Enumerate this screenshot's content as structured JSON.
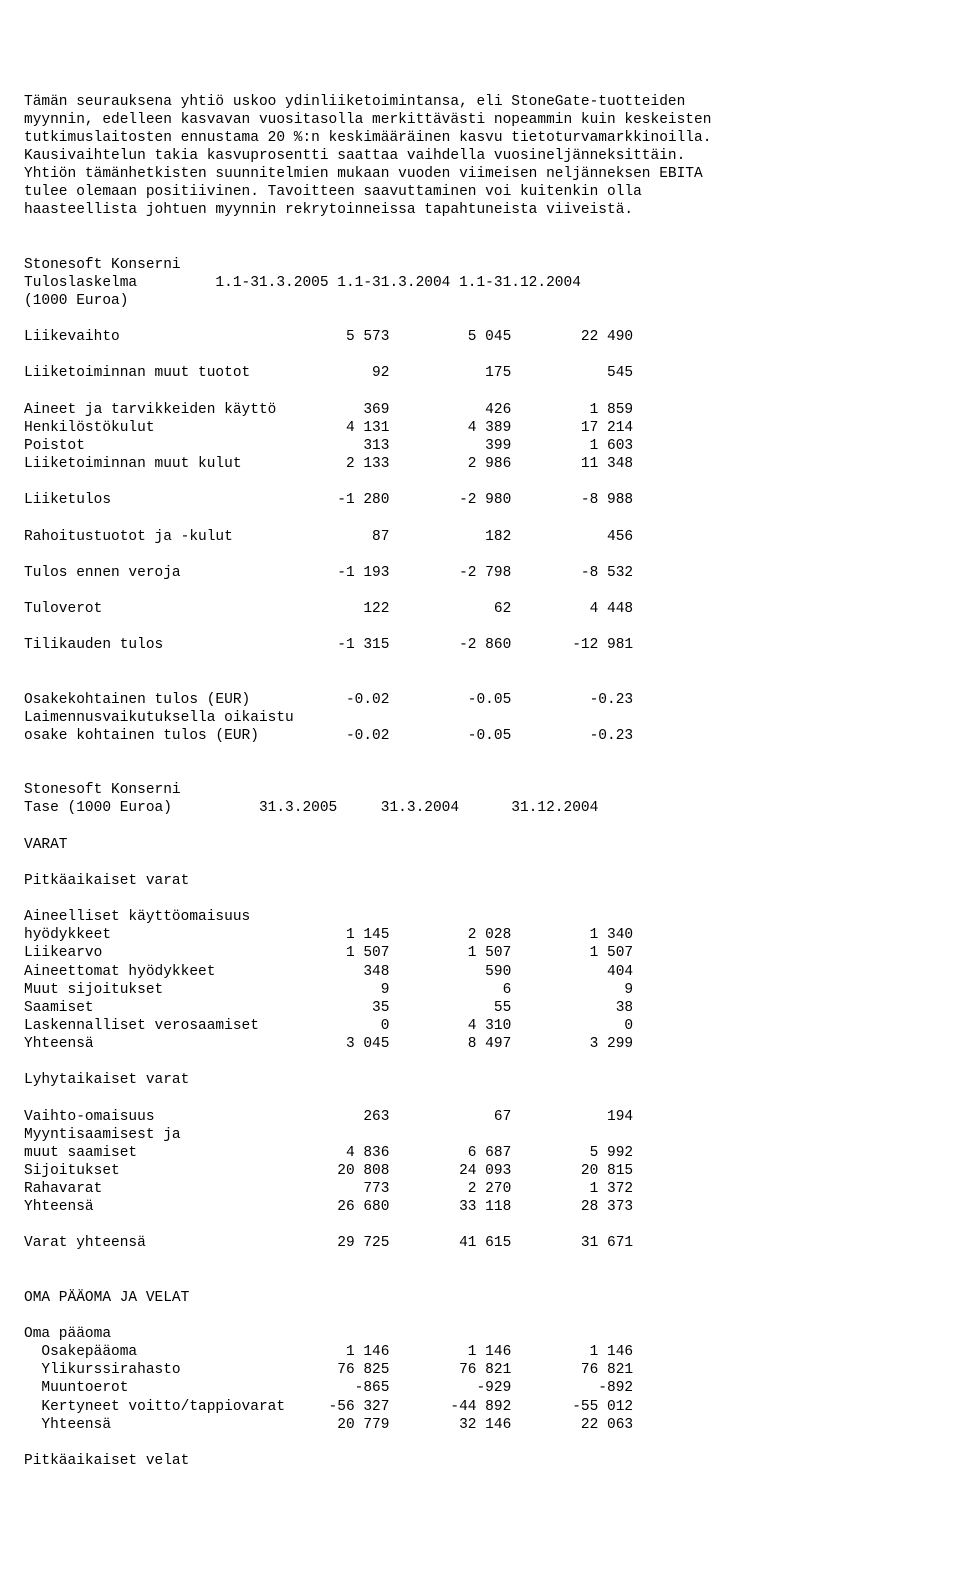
{
  "para1": "Tämän seurauksena yhtiö uskoo ydinliiketoimintansa, eli StoneGate-tuotteiden\nmyynnin, edelleen kasvavan vuositasolla merkittävästi nopeammin kuin keskeisten\ntutkimuslaitosten ennustama 20 %:n keskimääräinen kasvu tietoturvamarkkinoilla.\nKausivaihtelun takia kasvuprosentti saattaa vaihdella vuosineljänneksittäin.\nYhtiön tämänhetkisten suunnitelmien mukaan vuoden viimeisen neljänneksen EBITA\ntulee olemaan positiivinen. Tavoitteen saavuttaminen voi kuitenkin olla\nhaasteellista johtuen myynnin rekrytoinneissa tapahtuneista viiveistä.",
  "income": {
    "title": "Stonesoft Konserni",
    "labelL": "Tuloslaskelma",
    "note": "(1000 Euroa)",
    "col1": "1.1-31.3.2005",
    "col2": "1.1-31.3.2004",
    "col3": "1.1-31.12.2004",
    "r1": {
      "l": "Liikevaihto",
      "a": "5 573",
      "b": "5 045",
      "c": "22 490"
    },
    "r2": {
      "l": "Liiketoiminnan muut tuotot",
      "a": "92",
      "b": "175",
      "c": "545"
    },
    "r3": {
      "l": "Aineet ja tarvikkeiden käyttö",
      "a": "369",
      "b": "426",
      "c": "1 859"
    },
    "r4": {
      "l": "Henkilöstökulut",
      "a": "4 131",
      "b": "4 389",
      "c": "17 214"
    },
    "r5": {
      "l": "Poistot",
      "a": "313",
      "b": "399",
      "c": "1 603"
    },
    "r6": {
      "l": "Liiketoiminnan muut kulut",
      "a": "2 133",
      "b": "2 986",
      "c": "11 348"
    },
    "r7": {
      "l": "Liiketulos",
      "a": "-1 280",
      "b": "-2 980",
      "c": "-8 988"
    },
    "r8": {
      "l": "Rahoitustuotot ja -kulut",
      "a": "87",
      "b": "182",
      "c": "456"
    },
    "r9": {
      "l": "Tulos ennen veroja",
      "a": "-1 193",
      "b": "-2 798",
      "c": "-8 532"
    },
    "r10": {
      "l": "Tuloverot",
      "a": "122",
      "b": "62",
      "c": "4 448"
    },
    "r11": {
      "l": "Tilikauden tulos",
      "a": "-1 315",
      "b": "-2 860",
      "c": "-12 981"
    },
    "r12": {
      "l": "Osakekohtainen tulos (EUR)",
      "a": "-0.02",
      "b": "-0.05",
      "c": "-0.23"
    },
    "r13l": "Laimennusvaikutuksella oikaistu",
    "r13": {
      "l": "osake kohtainen tulos (EUR)",
      "a": "-0.02",
      "b": "-0.05",
      "c": "-0.23"
    }
  },
  "balance": {
    "title": "Stonesoft Konserni",
    "labelL": "Tase (1000 Euroa)",
    "col1": "31.3.2005",
    "col2": "31.3.2004",
    "col3": "31.12.2004",
    "h1": "VARAT",
    "h2": "Pitkäaikaiset varat",
    "h2b": "Aineelliset käyttöomaisuus",
    "r1": {
      "l": "hyödykkeet",
      "a": "1 145",
      "b": "2 028",
      "c": "1 340"
    },
    "r2": {
      "l": "Liikearvo",
      "a": "1 507",
      "b": "1 507",
      "c": "1 507"
    },
    "r3": {
      "l": "Aineettomat hyödykkeet",
      "a": "348",
      "b": "590",
      "c": "404"
    },
    "r4": {
      "l": "Muut sijoitukset",
      "a": "9",
      "b": "6",
      "c": "9"
    },
    "r5": {
      "l": "Saamiset",
      "a": "35",
      "b": "55",
      "c": "38"
    },
    "r6": {
      "l": "Laskennalliset verosaamiset",
      "a": "0",
      "b": "4 310",
      "c": "0"
    },
    "r7": {
      "l": "Yhteensä",
      "a": "3 045",
      "b": "8 497",
      "c": "3 299"
    },
    "h3": "Lyhytaikaiset varat",
    "r8": {
      "l": "Vaihto-omaisuus",
      "a": "263",
      "b": "67",
      "c": "194"
    },
    "h3b": "Myyntisaamisest ja",
    "r9": {
      "l": "muut saamiset",
      "a": "4 836",
      "b": "6 687",
      "c": "5 992"
    },
    "r10": {
      "l": "Sijoitukset",
      "a": "20 808",
      "b": "24 093",
      "c": "20 815"
    },
    "r11": {
      "l": "Rahavarat",
      "a": "773",
      "b": "2 270",
      "c": "1 372"
    },
    "r12": {
      "l": "Yhteensä",
      "a": "26 680",
      "b": "33 118",
      "c": "28 373"
    },
    "r13": {
      "l": "Varat yhteensä",
      "a": "29 725",
      "b": "41 615",
      "c": "31 671"
    },
    "h4": "OMA PÄÄOMA JA VELAT",
    "h5": "Oma pääoma",
    "r14": {
      "l": "  Osakepääoma",
      "a": "1 146",
      "b": "1 146",
      "c": "1 146"
    },
    "r15": {
      "l": "  Ylikurssirahasto",
      "a": "76 825",
      "b": "76 821",
      "c": "76 821"
    },
    "r16": {
      "l": "  Muuntoerot",
      "a": "-865",
      "b": "-929",
      "c": "-892"
    },
    "r17": {
      "l": "  Kertyneet voitto/tappiovarat",
      "a": "-56 327",
      "b": "-44 892",
      "c": "-55 012"
    },
    "r18": {
      "l": "  Yhteensä",
      "a": "20 779",
      "b": "32 146",
      "c": "22 063"
    },
    "h6": "Pitkäaikaiset velat"
  }
}
